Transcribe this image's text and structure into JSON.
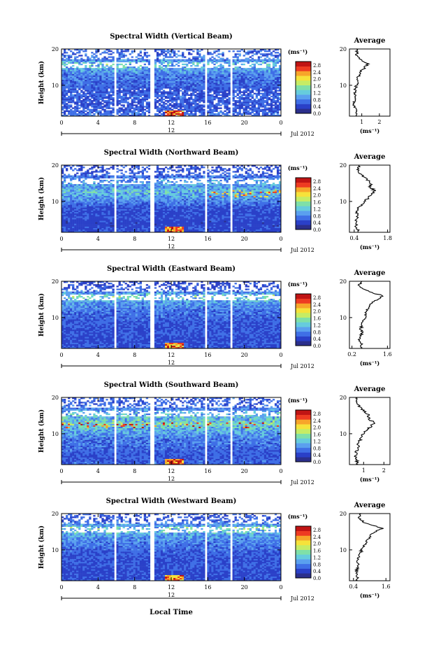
{
  "figure": {
    "xlabel": "Local Time",
    "ylabel": "Height (km)",
    "date_label": "Jul 2012",
    "day_label": "12",
    "unit_label": "(ms⁻¹)",
    "avg_title": "Average",
    "avg_xlabel": "(ms⁻¹)"
  },
  "colors": {
    "scale": [
      "#2b2f8c",
      "#2a40c8",
      "#3f6fe6",
      "#5aa0ef",
      "#66ccdd",
      "#7fe0a8",
      "#c6ec64",
      "#f6e23a",
      "#f7a52a",
      "#ee3b22",
      "#c01414"
    ]
  },
  "chart_data": [
    {
      "type": "heatmap",
      "title": "Spectral Width (Vertical Beam)",
      "x_ticks": [
        "0",
        "4",
        "8",
        "12",
        "16",
        "20",
        "0"
      ],
      "x_range": [
        0,
        24
      ],
      "y_ticks": [
        "10",
        "20"
      ],
      "y_range": [
        1.5,
        20
      ],
      "data_gaps_hours": [
        [
          5.7,
          6.0
        ],
        [
          9.8,
          10.1
        ],
        [
          15.6,
          15.9
        ],
        [
          17.9,
          18.1
        ],
        [
          18.4,
          18.6
        ]
      ],
      "colorbar_ticks": [
        "0.0",
        "0.4",
        "0.8",
        "1.2",
        "1.6",
        "2.0",
        "2.4",
        "2.8"
      ],
      "colorbar_range": [
        0,
        3.0
      ],
      "average_profile": {
        "x_ticks": [
          "1",
          "2"
        ],
        "x_range": [
          0.3,
          2.6
        ],
        "height_km": [
          2,
          3,
          4,
          5,
          6,
          7,
          8,
          9,
          10,
          11,
          12,
          13,
          14,
          15,
          16,
          17,
          18,
          19,
          20
        ],
        "value": [
          0.75,
          0.65,
          0.6,
          0.55,
          0.65,
          0.7,
          0.6,
          0.65,
          0.7,
          0.75,
          0.8,
          0.85,
          1.0,
          1.2,
          1.35,
          0.9,
          0.75,
          0.7,
          0.75
        ]
      }
    },
    {
      "type": "heatmap",
      "title": "Spectral Width (Northward Beam)",
      "x_ticks": [
        "0",
        "4",
        "8",
        "12",
        "16",
        "20",
        "0"
      ],
      "x_range": [
        0,
        24
      ],
      "y_ticks": [
        "10",
        "20"
      ],
      "y_range": [
        1.5,
        20
      ],
      "data_gaps_hours": [
        [
          5.7,
          6.0
        ],
        [
          9.8,
          10.1
        ],
        [
          15.6,
          15.9
        ],
        [
          17.9,
          18.1
        ],
        [
          18.4,
          18.6
        ]
      ],
      "colorbar_ticks": [
        "0.0",
        "0.4",
        "0.8",
        "1.2",
        "1.6",
        "2.0",
        "2.4",
        "2.8"
      ],
      "colorbar_range": [
        0,
        3.0
      ],
      "average_profile": {
        "x_ticks": [
          "0.4",
          "1.8"
        ],
        "x_range": [
          0.2,
          1.9
        ],
        "height_km": [
          2,
          3,
          4,
          5,
          6,
          7,
          8,
          9,
          10,
          11,
          12,
          13,
          14,
          15,
          16,
          17,
          18,
          19,
          20
        ],
        "value": [
          0.55,
          0.5,
          0.45,
          0.5,
          0.55,
          0.5,
          0.55,
          0.7,
          0.85,
          1.0,
          1.15,
          1.25,
          1.05,
          1.1,
          0.95,
          0.75,
          0.6,
          0.55,
          0.6
        ]
      }
    },
    {
      "type": "heatmap",
      "title": "Spectral Width (Eastward Beam)",
      "x_ticks": [
        "0",
        "4",
        "8",
        "12",
        "16",
        "20",
        "0"
      ],
      "x_range": [
        0,
        24
      ],
      "y_ticks": [
        "10",
        "20"
      ],
      "y_range": [
        1.5,
        20
      ],
      "data_gaps_hours": [
        [
          5.7,
          6.0
        ],
        [
          9.8,
          10.1
        ],
        [
          15.6,
          15.9
        ],
        [
          17.9,
          18.1
        ],
        [
          18.4,
          18.6
        ]
      ],
      "colorbar_ticks": [
        "0.0",
        "0.4",
        "0.8",
        "1.2",
        "1.6",
        "2.0",
        "2.4",
        "2.8"
      ],
      "colorbar_range": [
        0,
        3.0
      ],
      "average_profile": {
        "x_ticks": [
          "0.2",
          "1.6"
        ],
        "x_range": [
          0.1,
          1.7
        ],
        "height_km": [
          2,
          3,
          4,
          5,
          6,
          7,
          8,
          9,
          10,
          11,
          12,
          13,
          14,
          15,
          16,
          17,
          18,
          19,
          20
        ],
        "value": [
          0.6,
          0.55,
          0.5,
          0.55,
          0.6,
          0.55,
          0.6,
          0.65,
          0.7,
          0.75,
          0.8,
          0.9,
          1.0,
          1.2,
          1.45,
          0.9,
          0.6,
          0.5,
          0.55
        ]
      }
    },
    {
      "type": "heatmap",
      "title": "Spectral Width (Southward Beam)",
      "x_ticks": [
        "0",
        "4",
        "8",
        "12",
        "16",
        "20",
        "0"
      ],
      "x_range": [
        0,
        24
      ],
      "y_ticks": [
        "10",
        "20"
      ],
      "y_range": [
        1.5,
        20
      ],
      "data_gaps_hours": [
        [
          5.7,
          6.0
        ],
        [
          9.8,
          10.1
        ],
        [
          15.6,
          15.9
        ],
        [
          17.9,
          18.1
        ],
        [
          18.4,
          18.6
        ]
      ],
      "colorbar_ticks": [
        "0.0",
        "0.4",
        "0.8",
        "1.2",
        "1.6",
        "2.0",
        "2.4",
        "2.8"
      ],
      "colorbar_range": [
        0,
        3.0
      ],
      "average_profile": {
        "x_ticks": [
          "1",
          "2"
        ],
        "x_range": [
          0.3,
          2.3
        ],
        "height_km": [
          2,
          3,
          4,
          5,
          6,
          7,
          8,
          9,
          10,
          11,
          12,
          13,
          14,
          15,
          16,
          17,
          18,
          19,
          20
        ],
        "value": [
          0.7,
          0.65,
          0.6,
          0.65,
          0.7,
          0.75,
          0.8,
          0.9,
          1.0,
          1.15,
          1.35,
          1.5,
          1.3,
          1.25,
          1.1,
          0.85,
          0.7,
          0.65,
          0.7
        ]
      }
    },
    {
      "type": "heatmap",
      "title": "Spectral Width (Westward Beam)",
      "x_ticks": [
        "0",
        "4",
        "8",
        "12",
        "16",
        "20",
        "0"
      ],
      "x_range": [
        0,
        24
      ],
      "y_ticks": [
        "10",
        "20"
      ],
      "y_range": [
        1.5,
        20
      ],
      "data_gaps_hours": [
        [
          5.7,
          6.0
        ],
        [
          9.8,
          10.1
        ],
        [
          15.6,
          15.9
        ],
        [
          17.9,
          18.1
        ],
        [
          18.4,
          18.6
        ]
      ],
      "colorbar_ticks": [
        "0.0",
        "0.4",
        "0.8",
        "1.2",
        "1.6",
        "2.0",
        "2.4",
        "2.8"
      ],
      "colorbar_range": [
        0,
        3.0
      ],
      "average_profile": {
        "x_ticks": [
          "0.4",
          "1.6"
        ],
        "x_range": [
          0.25,
          1.75
        ],
        "height_km": [
          2,
          3,
          4,
          5,
          6,
          7,
          8,
          9,
          10,
          11,
          12,
          13,
          14,
          15,
          16,
          17,
          18,
          19,
          20
        ],
        "value": [
          0.55,
          0.5,
          0.5,
          0.55,
          0.6,
          0.55,
          0.6,
          0.65,
          0.7,
          0.8,
          0.85,
          0.95,
          1.05,
          1.2,
          1.5,
          0.95,
          0.7,
          0.6,
          0.65
        ]
      }
    }
  ]
}
